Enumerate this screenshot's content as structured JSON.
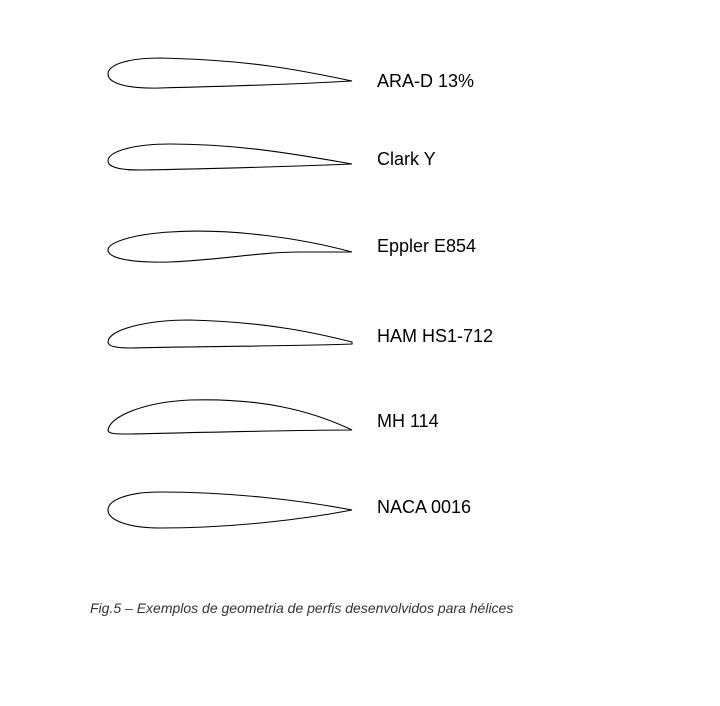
{
  "airfoils": [
    {
      "name": "ARA-D 13%"
    },
    {
      "name": "Clark Y"
    },
    {
      "name": "Eppler E854"
    },
    {
      "name": "HAM HS1-712"
    },
    {
      "name": "MH 114"
    },
    {
      "name": "NACA 0016"
    }
  ],
  "caption": "Fig.5 – Exemplos de geometria de perfis desenvolvidos para hélices"
}
